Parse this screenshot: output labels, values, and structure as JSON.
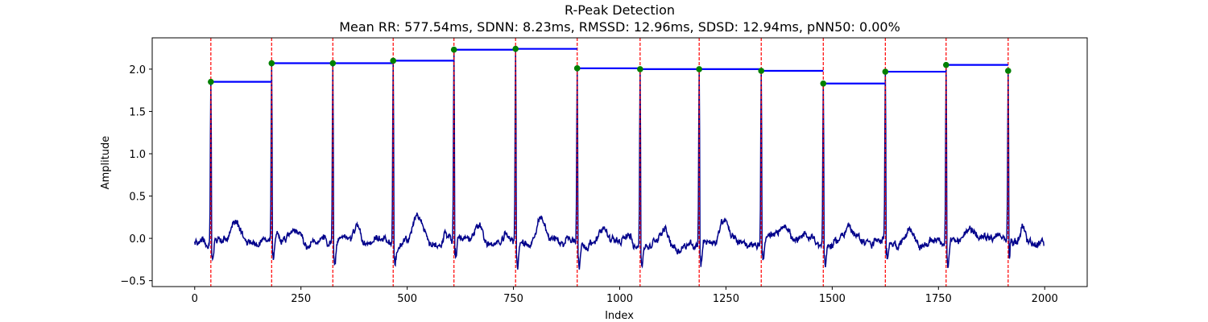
{
  "chart_data": {
    "type": "line",
    "title": "R-Peak Detection",
    "subtitle": "Mean RR: 577.54ms, SDNN: 8.23ms, RMSSD: 12.96ms, SDSD: 12.94ms, pNN50: 0.00%",
    "xlabel": "Index",
    "ylabel": "Amplitude",
    "xlim": [
      -100,
      2100
    ],
    "ylim": [
      -0.57,
      2.37
    ],
    "xticks": [
      0,
      250,
      500,
      750,
      1000,
      1250,
      1500,
      1750,
      2000
    ],
    "yticks": [
      -0.5,
      0.0,
      0.5,
      1.0,
      1.5,
      2.0
    ],
    "ytick_labels": [
      "−0.5",
      "0.0",
      "0.5",
      "1.0",
      "1.5",
      "2.0"
    ],
    "grid": false,
    "signal_length": 2000,
    "peaks": [
      {
        "index": 38,
        "amplitude": 1.85
      },
      {
        "index": 181,
        "amplitude": 2.07
      },
      {
        "index": 325,
        "amplitude": 2.07
      },
      {
        "index": 467,
        "amplitude": 2.1
      },
      {
        "index": 610,
        "amplitude": 2.23
      },
      {
        "index": 755,
        "amplitude": 2.24
      },
      {
        "index": 900,
        "amplitude": 2.01
      },
      {
        "index": 1048,
        "amplitude": 2.0
      },
      {
        "index": 1187,
        "amplitude": 2.0
      },
      {
        "index": 1333,
        "amplitude": 1.98
      },
      {
        "index": 1479,
        "amplitude": 1.83
      },
      {
        "index": 1625,
        "amplitude": 1.97
      },
      {
        "index": 1768,
        "amplitude": 2.05
      },
      {
        "index": 1914,
        "amplitude": 1.98
      }
    ],
    "colors": {
      "signal": "#00008b",
      "peak_marker": "#008000",
      "peak_line": "#ff0000",
      "rr_segment": "#0000ff"
    }
  }
}
